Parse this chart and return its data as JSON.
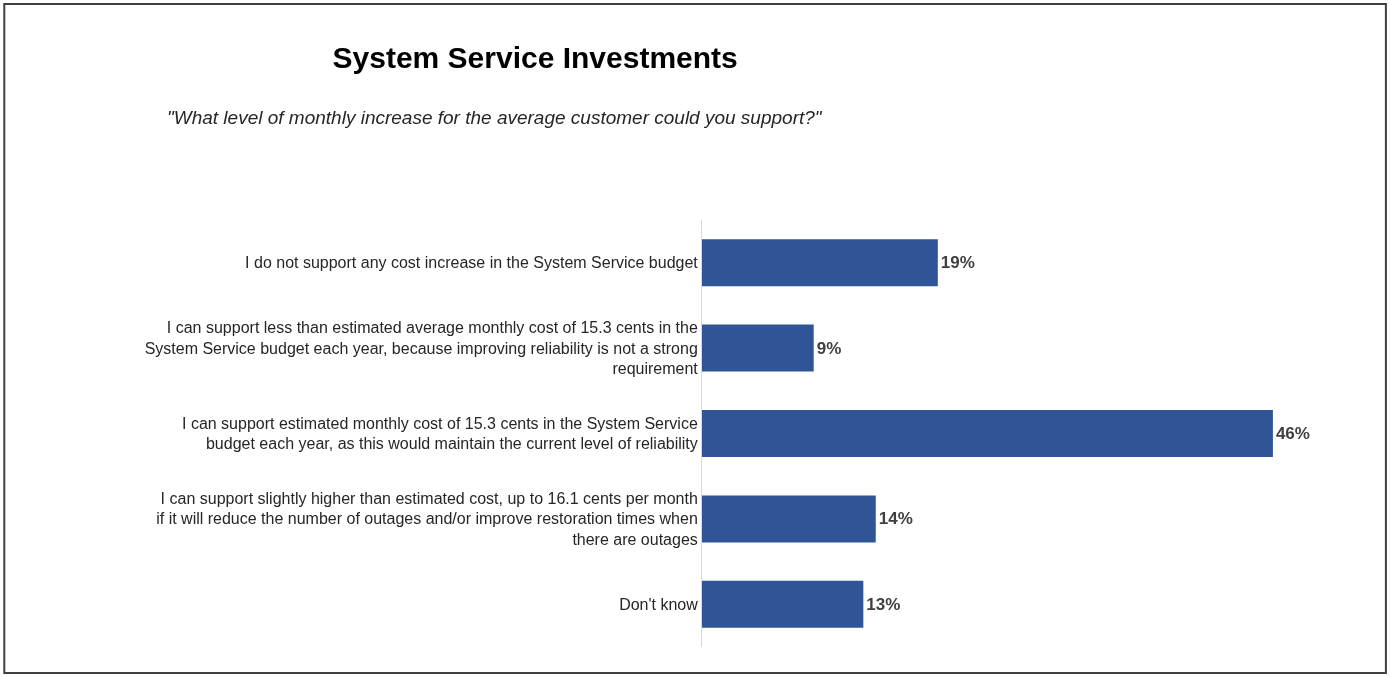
{
  "chart_data": {
    "type": "bar",
    "orientation": "horizontal",
    "title": "System Service Investments",
    "subtitle": "\"What level of monthly increase for the average customer could you support?\"",
    "categories": [
      "I do not support any cost increase in the System Service budget",
      "I can support less than estimated average monthly cost of 15.3 cents in the System Service budget each year, because improving reliability is not a strong requirement",
      "I can support estimated monthly cost of 15.3 cents in the System Service budget each year, as this would maintain the current level of reliability",
      "I can support slightly higher than estimated cost, up to 16.1 cents per month if it will reduce the number of outages and/or improve restoration times when there are outages",
      "Don't know"
    ],
    "values": [
      19,
      9,
      46,
      14,
      13
    ],
    "value_labels": [
      "19%",
      "9%",
      "46%",
      "14%",
      "13%"
    ],
    "color": "#2f5597"
  }
}
